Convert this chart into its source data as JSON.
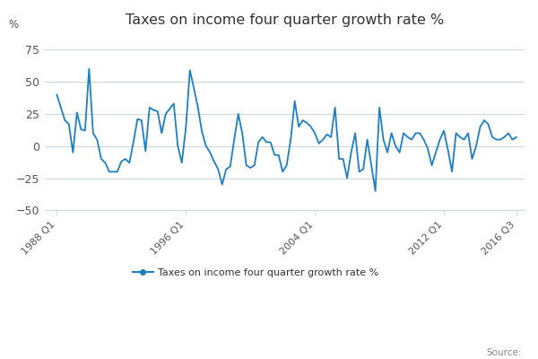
{
  "title": "Taxes on income four quarter growth rate %",
  "ylabel": "%",
  "legend_label": "Taxes on income four quarter growth rate %",
  "source_text": "Source:",
  "line_color": "#1b7fc4",
  "background_color": "#ffffff",
  "grid_color": "#d0d7de",
  "ylim": [
    -50,
    87
  ],
  "yticks": [
    -50,
    -25,
    0,
    25,
    50,
    75
  ],
  "x_tick_labels": [
    "1988 Q1",
    "1996 Q1",
    "2004 Q1",
    "2012 Q1",
    "2016 Q3"
  ],
  "x_tick_positions": [
    0,
    32,
    64,
    96,
    114
  ],
  "taxes_data": [
    40,
    30,
    20,
    17,
    -5,
    26,
    13,
    12,
    60,
    10,
    5,
    -10,
    -13,
    -20,
    -20,
    -20,
    -12,
    -10,
    -13,
    3,
    21,
    20,
    -4,
    30,
    28,
    27,
    10,
    25,
    29,
    33,
    0,
    -13,
    14,
    59,
    45,
    30,
    11,
    0,
    -5,
    -12,
    -18,
    -30,
    -18,
    -16,
    5,
    25,
    10,
    -15,
    -17,
    -15,
    3,
    7,
    3,
    3,
    -7,
    -7,
    -20,
    -15,
    5,
    35,
    15,
    20,
    18,
    15,
    10,
    2,
    5,
    9,
    7,
    30,
    -10,
    -10,
    -25,
    -5,
    10,
    -20,
    -18,
    5,
    -15,
    -35,
    30,
    5,
    -5,
    10,
    0,
    -5,
    10,
    7,
    5,
    10,
    10,
    5,
    -2,
    -15,
    -5,
    5,
    12,
    -3,
    -20,
    10,
    7,
    5,
    10,
    -10,
    0,
    15,
    20,
    17,
    7,
    5,
    5,
    7,
    10,
    5,
    7
  ]
}
